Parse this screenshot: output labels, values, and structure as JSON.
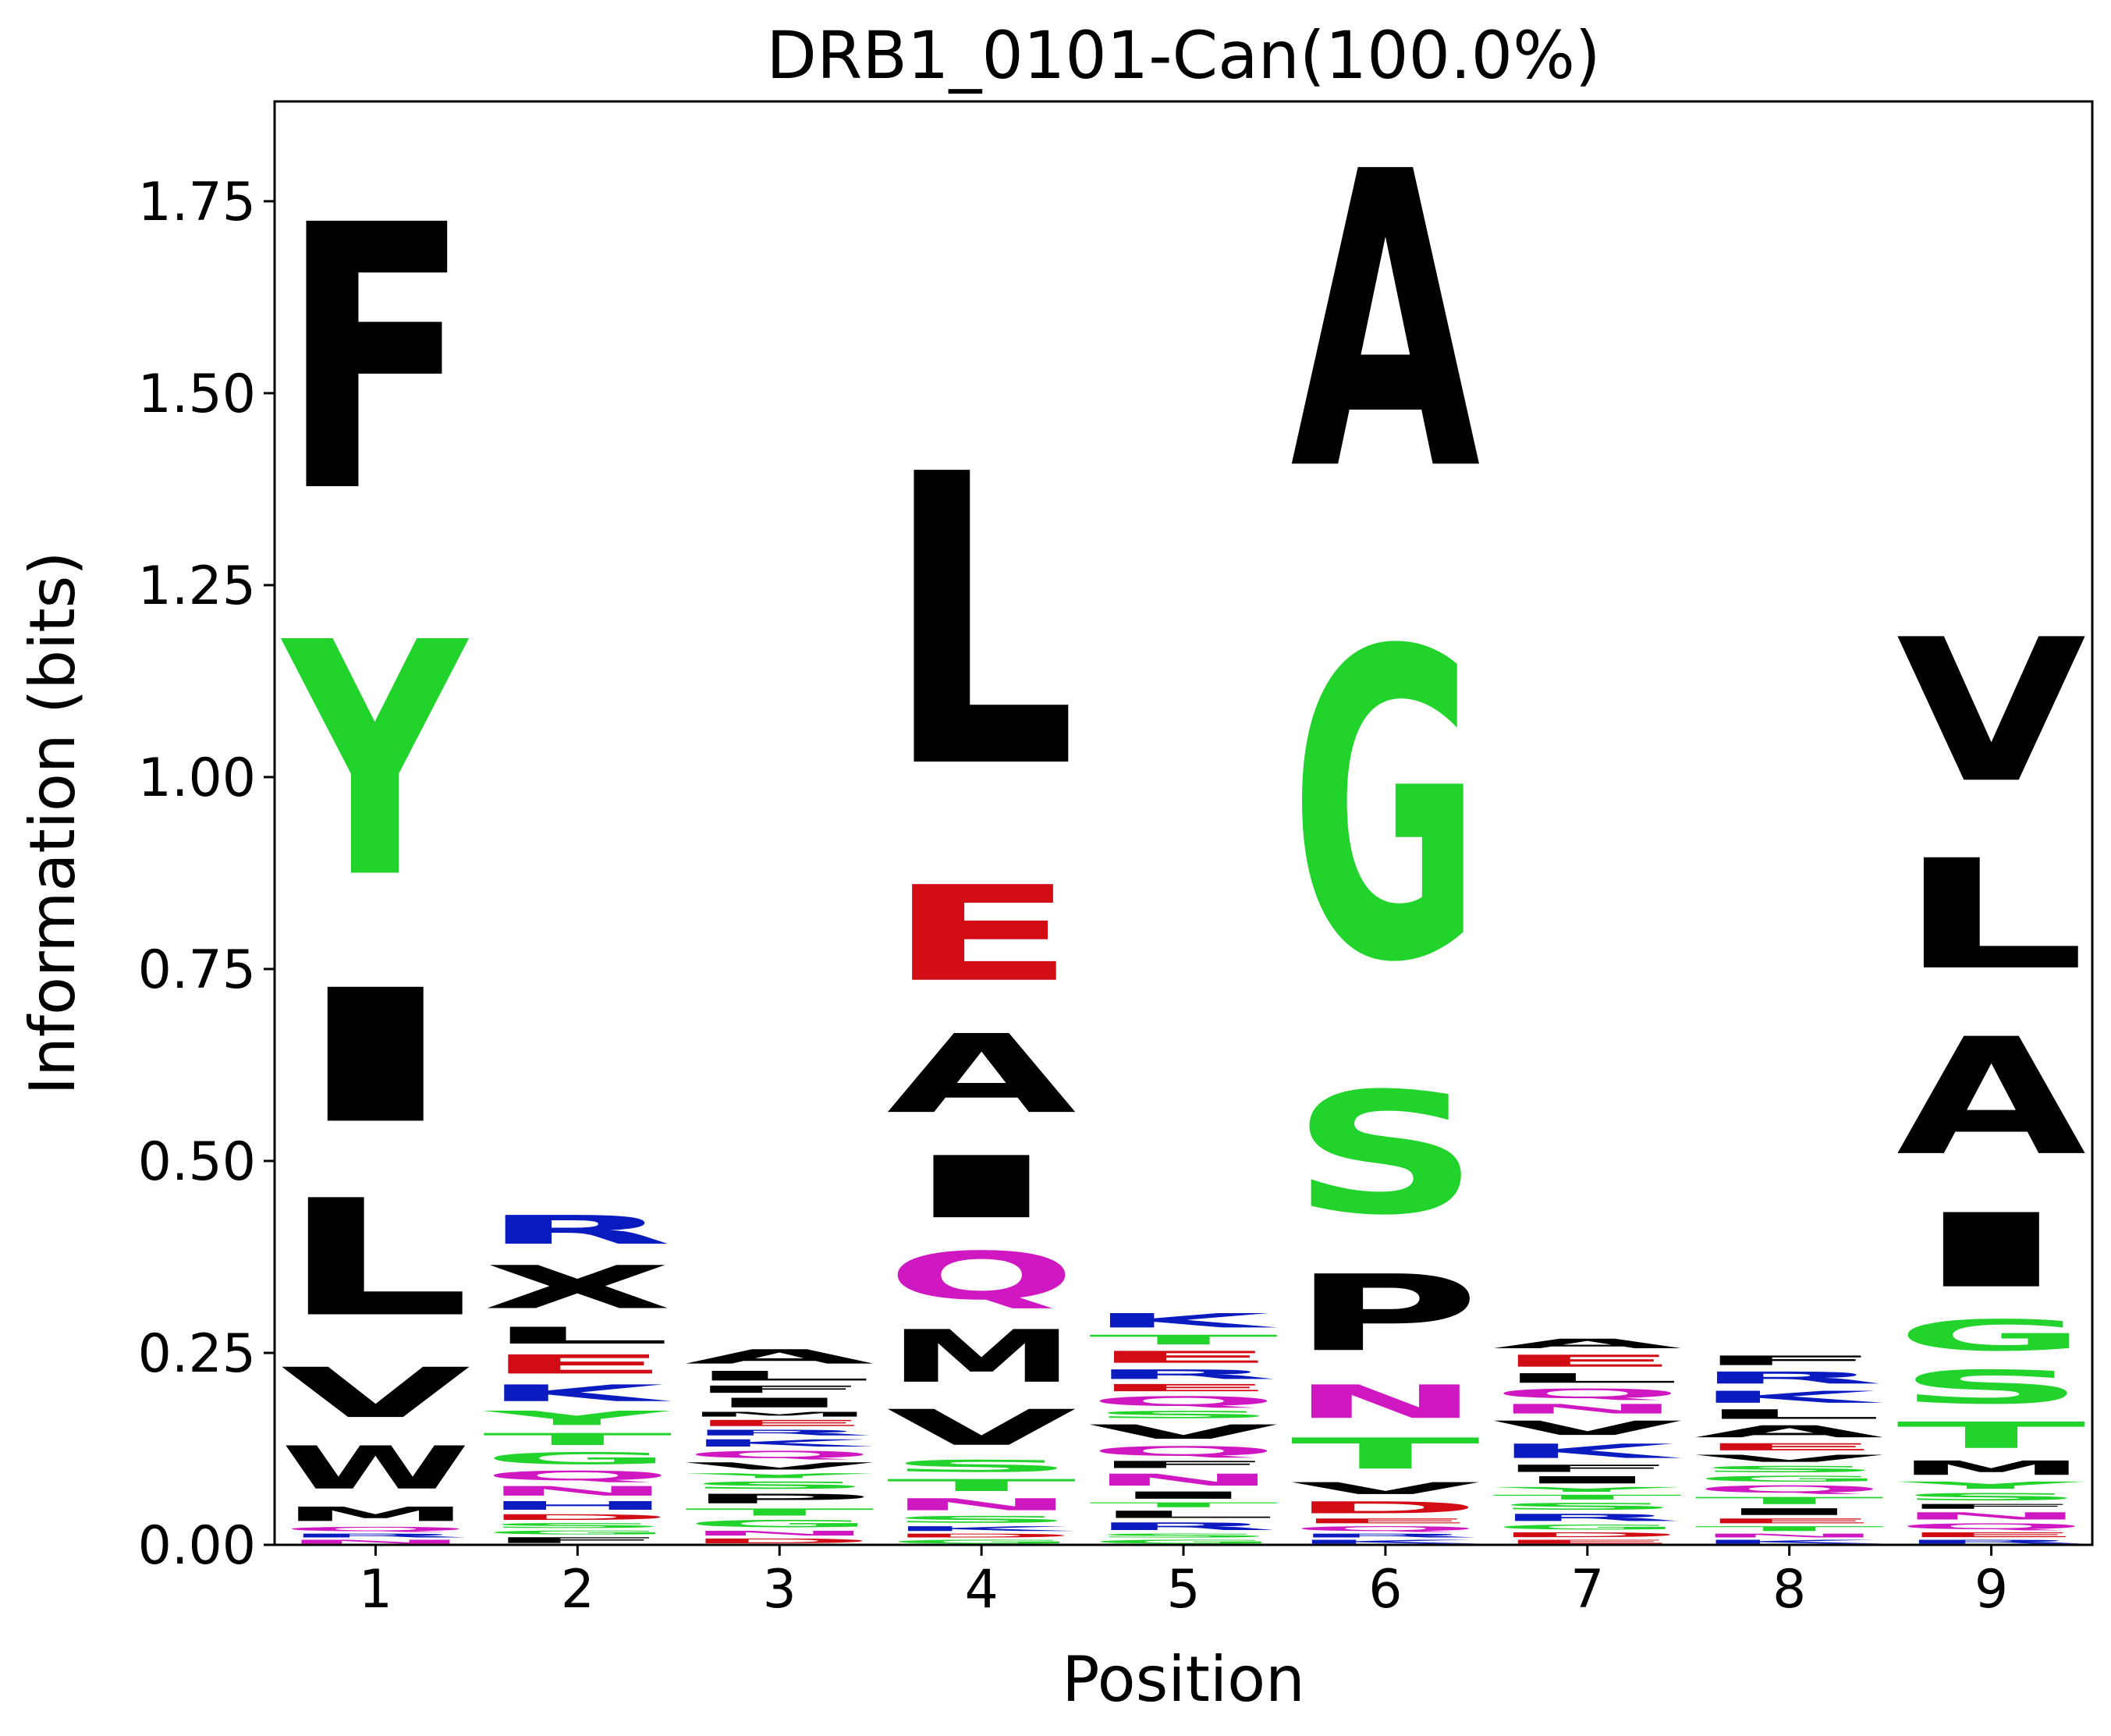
{
  "chart_data": {
    "type": "sequence-logo",
    "title": "DRB1_0101-Can(100.0%)",
    "xlabel": "Position",
    "ylabel": "Information (bits)",
    "x_ticks": [
      "1",
      "2",
      "3",
      "4",
      "5",
      "6",
      "7",
      "8",
      "9"
    ],
    "y_ticks": [
      "0.00",
      "0.25",
      "0.50",
      "0.75",
      "1.00",
      "1.25",
      "1.50",
      "1.75"
    ],
    "ylim": [
      0,
      1.88
    ],
    "grid": false,
    "colors": {
      "hydrophobic": "#000000",
      "polar": "#21d32a",
      "basic": "#0a1bc0",
      "acidic": "#d10c15",
      "amide": "#d018c2"
    },
    "positions": [
      {
        "position": 1,
        "stack": [
          {
            "letter": "N",
            "color": "#d018c2",
            "bits": 0.008
          },
          {
            "letter": "R",
            "color": "#0a1bc0",
            "bits": 0.008
          },
          {
            "letter": "Q",
            "color": "#d018c2",
            "bits": 0.009
          },
          {
            "letter": "M",
            "color": "#000000",
            "bits": 0.03
          },
          {
            "letter": "W",
            "color": "#000000",
            "bits": 0.09
          },
          {
            "letter": "V",
            "color": "#000000",
            "bits": 0.105
          },
          {
            "letter": "L",
            "color": "#000000",
            "bits": 0.245
          },
          {
            "letter": "I",
            "color": "#000000",
            "bits": 0.28
          },
          {
            "letter": "Y",
            "color": "#21d32a",
            "bits": 0.49
          },
          {
            "letter": "F",
            "color": "#000000",
            "bits": 0.555
          }
        ]
      },
      {
        "position": 2,
        "stack": [
          {
            "letter": "F",
            "color": "#000000",
            "bits": 0.012
          },
          {
            "letter": "G",
            "color": "#21d32a",
            "bits": 0.008
          },
          {
            "letter": "S",
            "color": "#21d32a",
            "bits": 0.01
          },
          {
            "letter": "D",
            "color": "#d10c15",
            "bits": 0.012
          },
          {
            "letter": "H",
            "color": "#0a1bc0",
            "bits": 0.018
          },
          {
            "letter": "N",
            "color": "#d018c2",
            "bits": 0.02
          },
          {
            "letter": "Q",
            "color": "#d018c2",
            "bits": 0.02
          },
          {
            "letter": "G",
            "color": "#21d32a",
            "bits": 0.025
          },
          {
            "letter": "T",
            "color": "#21d32a",
            "bits": 0.025
          },
          {
            "letter": "Y",
            "color": "#21d32a",
            "bits": 0.03
          },
          {
            "letter": "K",
            "color": "#0a1bc0",
            "bits": 0.035
          },
          {
            "letter": "E",
            "color": "#d10c15",
            "bits": 0.04
          },
          {
            "letter": "L",
            "color": "#000000",
            "bits": 0.035
          },
          {
            "letter": "X",
            "color": "#000000",
            "bits": 0.09
          },
          {
            "letter": "R",
            "color": "#0a1bc0",
            "bits": 0.06
          }
        ]
      },
      {
        "position": 3,
        "stack": [
          {
            "letter": "D",
            "color": "#d10c15",
            "bits": 0.01
          },
          {
            "letter": "N",
            "color": "#d018c2",
            "bits": 0.01
          },
          {
            "letter": "G",
            "color": "#21d32a",
            "bits": 0.015
          },
          {
            "letter": "T",
            "color": "#21d32a",
            "bits": 0.015
          },
          {
            "letter": "P",
            "color": "#000000",
            "bits": 0.02
          },
          {
            "letter": "S",
            "color": "#21d32a",
            "bits": 0.015
          },
          {
            "letter": "Y",
            "color": "#21d32a",
            "bits": 0.01
          },
          {
            "letter": "V",
            "color": "#000000",
            "bits": 0.015
          },
          {
            "letter": "Q",
            "color": "#d018c2",
            "bits": 0.015
          },
          {
            "letter": "K",
            "color": "#0a1bc0",
            "bits": 0.015
          },
          {
            "letter": "R",
            "color": "#0a1bc0",
            "bits": 0.012
          },
          {
            "letter": "E",
            "color": "#d10c15",
            "bits": 0.013
          },
          {
            "letter": "M",
            "color": "#000000",
            "bits": 0.01
          },
          {
            "letter": "I",
            "color": "#000000",
            "bits": 0.02
          },
          {
            "letter": "F",
            "color": "#000000",
            "bits": 0.015
          },
          {
            "letter": "L",
            "color": "#000000",
            "bits": 0.02
          },
          {
            "letter": "A",
            "color": "#000000",
            "bits": 0.03
          }
        ]
      },
      {
        "position": 4,
        "stack": [
          {
            "letter": "G",
            "color": "#21d32a",
            "bits": 0.008
          },
          {
            "letter": "D",
            "color": "#d10c15",
            "bits": 0.008
          },
          {
            "letter": "K",
            "color": "#0a1bc0",
            "bits": 0.01
          },
          {
            "letter": "S",
            "color": "#21d32a",
            "bits": 0.014
          },
          {
            "letter": "N",
            "color": "#d018c2",
            "bits": 0.025
          },
          {
            "letter": "T",
            "color": "#21d32a",
            "bits": 0.025
          },
          {
            "letter": "S",
            "color": "#21d32a",
            "bits": 0.025
          },
          {
            "letter": "V",
            "color": "#000000",
            "bits": 0.075
          },
          {
            "letter": "M",
            "color": "#000000",
            "bits": 0.11
          },
          {
            "letter": "Q",
            "color": "#d018c2",
            "bits": 0.1
          },
          {
            "letter": "I",
            "color": "#000000",
            "bits": 0.13
          },
          {
            "letter": "A",
            "color": "#000000",
            "bits": 0.165
          },
          {
            "letter": "E",
            "color": "#d10c15",
            "bits": 0.2
          },
          {
            "letter": "L",
            "color": "#000000",
            "bits": 0.61
          }
        ]
      },
      {
        "position": 5,
        "stack": [
          {
            "letter": "G",
            "color": "#21d32a",
            "bits": 0.008
          },
          {
            "letter": "S",
            "color": "#21d32a",
            "bits": 0.008
          },
          {
            "letter": "R",
            "color": "#0a1bc0",
            "bits": 0.016
          },
          {
            "letter": "L",
            "color": "#000000",
            "bits": 0.015
          },
          {
            "letter": "T",
            "color": "#21d32a",
            "bits": 0.01
          },
          {
            "letter": "I",
            "color": "#000000",
            "bits": 0.015
          },
          {
            "letter": "N",
            "color": "#d018c2",
            "bits": 0.025
          },
          {
            "letter": "F",
            "color": "#000000",
            "bits": 0.015
          },
          {
            "letter": "Q",
            "color": "#d018c2",
            "bits": 0.02
          },
          {
            "letter": "V",
            "color": "#000000",
            "bits": 0.03
          },
          {
            "letter": "S",
            "color": "#21d32a",
            "bits": 0.015
          },
          {
            "letter": "Q",
            "color": "#d018c2",
            "bits": 0.02
          },
          {
            "letter": "E",
            "color": "#d10c15",
            "bits": 0.015
          },
          {
            "letter": "R",
            "color": "#0a1bc0",
            "bits": 0.02
          },
          {
            "letter": "E",
            "color": "#d10c15",
            "bits": 0.025
          },
          {
            "letter": "T",
            "color": "#21d32a",
            "bits": 0.02
          },
          {
            "letter": "K",
            "color": "#0a1bc0",
            "bits": 0.03
          }
        ]
      },
      {
        "position": 6,
        "stack": [
          {
            "letter": "K",
            "color": "#0a1bc0",
            "bits": 0.008
          },
          {
            "letter": "R",
            "color": "#0a1bc0",
            "bits": 0.008
          },
          {
            "letter": "Q",
            "color": "#d018c2",
            "bits": 0.01
          },
          {
            "letter": "E",
            "color": "#d10c15",
            "bits": 0.01
          },
          {
            "letter": "D",
            "color": "#d10c15",
            "bits": 0.025
          },
          {
            "letter": "V",
            "color": "#000000",
            "bits": 0.025
          },
          {
            "letter": "T",
            "color": "#21d32a",
            "bits": 0.065
          },
          {
            "letter": "N",
            "color": "#d018c2",
            "bits": 0.07
          },
          {
            "letter": "P",
            "color": "#000000",
            "bits": 0.16
          },
          {
            "letter": "S",
            "color": "#21d32a",
            "bits": 0.255
          },
          {
            "letter": "G",
            "color": "#21d32a",
            "bits": 0.645
          },
          {
            "letter": "A",
            "color": "#000000",
            "bits": 0.62
          }
        ]
      },
      {
        "position": 7,
        "stack": [
          {
            "letter": "E",
            "color": "#d10c15",
            "bits": 0.008
          },
          {
            "letter": "D",
            "color": "#d10c15",
            "bits": 0.01
          },
          {
            "letter": "G",
            "color": "#21d32a",
            "bits": 0.01
          },
          {
            "letter": "R",
            "color": "#0a1bc0",
            "bits": 0.015
          },
          {
            "letter": "S",
            "color": "#21d32a",
            "bits": 0.014
          },
          {
            "letter": "T",
            "color": "#21d32a",
            "bits": 0.01
          },
          {
            "letter": "Y",
            "color": "#21d32a",
            "bits": 0.01
          },
          {
            "letter": "I",
            "color": "#000000",
            "bits": 0.015
          },
          {
            "letter": "F",
            "color": "#000000",
            "bits": 0.015
          },
          {
            "letter": "K",
            "color": "#0a1bc0",
            "bits": 0.03
          },
          {
            "letter": "V",
            "color": "#000000",
            "bits": 0.03
          },
          {
            "letter": "N",
            "color": "#d018c2",
            "bits": 0.02
          },
          {
            "letter": "Q",
            "color": "#d018c2",
            "bits": 0.02
          },
          {
            "letter": "L",
            "color": "#000000",
            "bits": 0.02
          },
          {
            "letter": "E",
            "color": "#d10c15",
            "bits": 0.025
          },
          {
            "letter": "A",
            "color": "#000000",
            "bits": 0.02
          }
        ]
      },
      {
        "position": 8,
        "stack": [
          {
            "letter": "K",
            "color": "#0a1bc0",
            "bits": 0.008
          },
          {
            "letter": "N",
            "color": "#d018c2",
            "bits": 0.008
          },
          {
            "letter": "T",
            "color": "#21d32a",
            "bits": 0.01
          },
          {
            "letter": "E",
            "color": "#d10c15",
            "bits": 0.01
          },
          {
            "letter": "I",
            "color": "#000000",
            "bits": 0.014
          },
          {
            "letter": "T",
            "color": "#21d32a",
            "bits": 0.015
          },
          {
            "letter": "Q",
            "color": "#d018c2",
            "bits": 0.015
          },
          {
            "letter": "G",
            "color": "#21d32a",
            "bits": 0.012
          },
          {
            "letter": "S",
            "color": "#21d32a",
            "bits": 0.013
          },
          {
            "letter": "V",
            "color": "#000000",
            "bits": 0.015
          },
          {
            "letter": "E",
            "color": "#d10c15",
            "bits": 0.015
          },
          {
            "letter": "A",
            "color": "#000000",
            "bits": 0.025
          },
          {
            "letter": "L",
            "color": "#000000",
            "bits": 0.02
          },
          {
            "letter": "K",
            "color": "#0a1bc0",
            "bits": 0.025
          },
          {
            "letter": "R",
            "color": "#0a1bc0",
            "bits": 0.025
          },
          {
            "letter": "F",
            "color": "#000000",
            "bits": 0.02
          }
        ]
      },
      {
        "position": 9,
        "stack": [
          {
            "letter": "R",
            "color": "#0a1bc0",
            "bits": 0.008
          },
          {
            "letter": "E",
            "color": "#d10c15",
            "bits": 0.01
          },
          {
            "letter": "Q",
            "color": "#d018c2",
            "bits": 0.012
          },
          {
            "letter": "N",
            "color": "#d018c2",
            "bits": 0.015
          },
          {
            "letter": "F",
            "color": "#000000",
            "bits": 0.01
          },
          {
            "letter": "S",
            "color": "#21d32a",
            "bits": 0.015
          },
          {
            "letter": "Y",
            "color": "#21d32a",
            "bits": 0.015
          },
          {
            "letter": "M",
            "color": "#000000",
            "bits": 0.03
          },
          {
            "letter": "T",
            "color": "#21d32a",
            "bits": 0.055
          },
          {
            "letter": "S",
            "color": "#21d32a",
            "bits": 0.07
          },
          {
            "letter": "G",
            "color": "#21d32a",
            "bits": 0.065
          },
          {
            "letter": "I",
            "color": "#000000",
            "bits": 0.155
          },
          {
            "letter": "A",
            "color": "#000000",
            "bits": 0.245
          },
          {
            "letter": "L",
            "color": "#000000",
            "bits": 0.23
          },
          {
            "letter": "V",
            "color": "#000000",
            "bits": 0.3
          }
        ]
      }
    ]
  }
}
